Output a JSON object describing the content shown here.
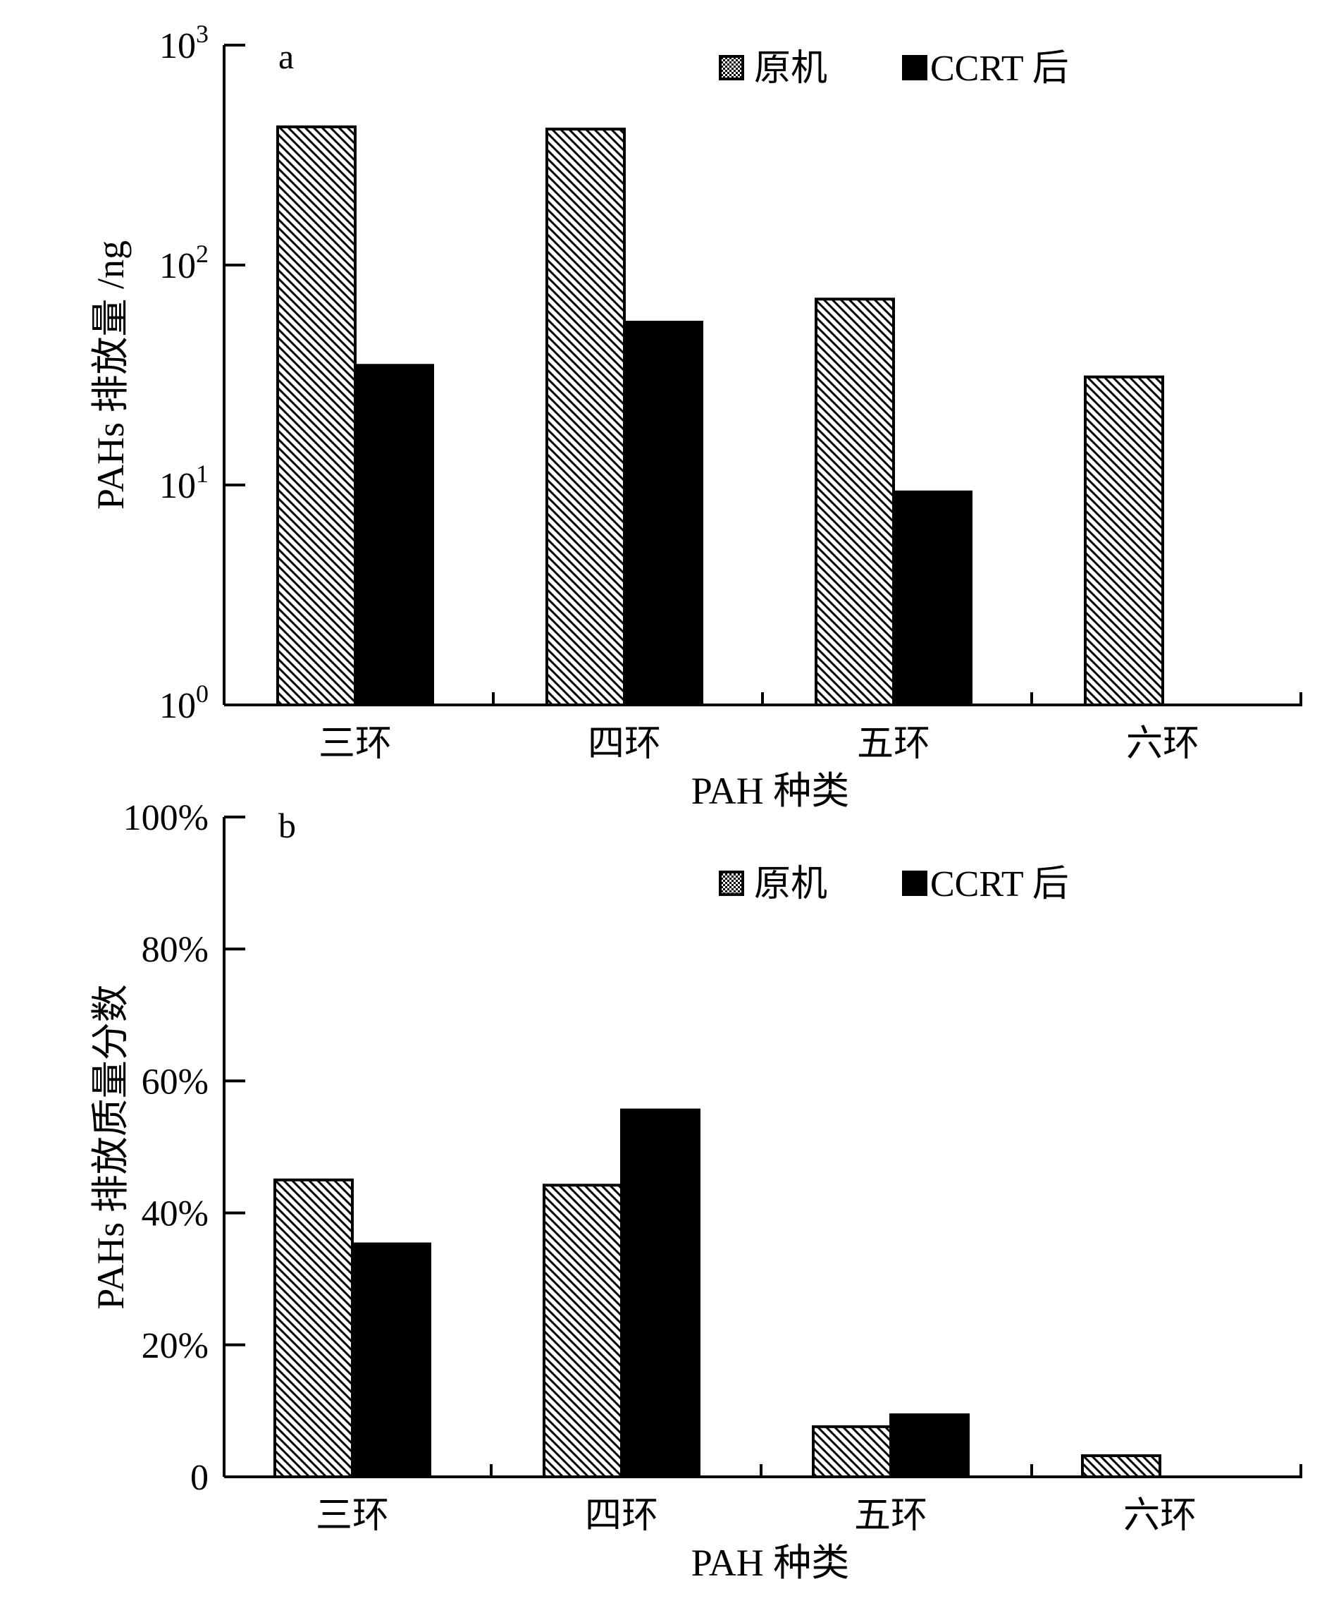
{
  "chart_data": [
    {
      "type": "bar",
      "panel_label": "a",
      "scale": "log",
      "categories": [
        "三环",
        "四环",
        "五环",
        "六环"
      ],
      "series": [
        {
          "name": "原机",
          "values": [
            425,
            415,
            70,
            31
          ],
          "pattern": "hatch"
        },
        {
          "name": "CCRT 后",
          "values": [
            35,
            55,
            9.3,
            null
          ],
          "pattern": "solid"
        }
      ],
      "xlabel": "PAH 种类",
      "ylabel": "PAHs 排放量 /ng",
      "ylim": [
        1,
        1000
      ],
      "yticks": [
        {
          "value": 1,
          "base": "10",
          "exp": "0"
        },
        {
          "value": 10,
          "base": "10",
          "exp": "1"
        },
        {
          "value": 100,
          "base": "10",
          "exp": "2"
        },
        {
          "value": 1000,
          "base": "10",
          "exp": "3"
        }
      ],
      "legend": {
        "position": "top-right",
        "labels": [
          "原机",
          "CCRT 后"
        ]
      },
      "grid": false
    },
    {
      "type": "bar",
      "panel_label": "b",
      "scale": "linear",
      "categories": [
        "三环",
        "四环",
        "五环",
        "六环"
      ],
      "series": [
        {
          "name": "原机",
          "values": [
            45,
            44.2,
            7.6,
            3.2
          ],
          "pattern": "hatch"
        },
        {
          "name": "CCRT 后",
          "values": [
            35.3,
            55.6,
            9.4,
            null
          ],
          "pattern": "solid"
        }
      ],
      "xlabel": "PAH 种类",
      "ylabel": "PAHs 排放质量分数",
      "ylim": [
        0,
        100
      ],
      "ytick_labels": [
        "0",
        "20%",
        "40%",
        "60%",
        "80%",
        "100%"
      ],
      "legend": {
        "position": "top-right",
        "labels": [
          "原机",
          "CCRT 后"
        ]
      },
      "grid": false
    }
  ],
  "colors": {
    "ink": "#000000",
    "background": "#ffffff"
  }
}
